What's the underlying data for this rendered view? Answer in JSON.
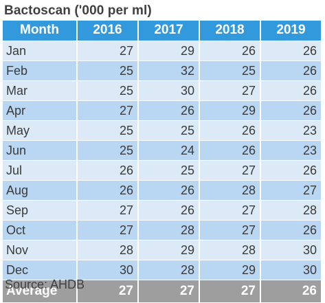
{
  "chart_data": {
    "type": "table",
    "title": "Bactoscan ('000 per ml)",
    "columns": [
      "Month",
      "2016",
      "2017",
      "2018",
      "2019"
    ],
    "rows": [
      [
        "Jan",
        "27",
        "29",
        "26",
        "26"
      ],
      [
        "Feb",
        "25",
        "32",
        "25",
        "26"
      ],
      [
        "Mar",
        "25",
        "30",
        "27",
        "26"
      ],
      [
        "Apr",
        "27",
        "26",
        "29",
        "26"
      ],
      [
        "May",
        "25",
        "25",
        "26",
        "23"
      ],
      [
        "Jun",
        "25",
        "24",
        "26",
        "23"
      ],
      [
        "Jul",
        "26",
        "25",
        "27",
        "26"
      ],
      [
        "Aug",
        "26",
        "26",
        "28",
        "27"
      ],
      [
        "Sep",
        "27",
        "26",
        "27",
        "28"
      ],
      [
        "Oct",
        "27",
        "28",
        "27",
        "26"
      ],
      [
        "Nov",
        "28",
        "29",
        "28",
        "30"
      ],
      [
        "Dec",
        "30",
        "28",
        "29",
        "30"
      ]
    ],
    "footer": [
      "Average",
      "27",
      "27",
      "27",
      "26"
    ],
    "source": "Source: AHDB"
  },
  "colors": {
    "header": "#3399dd",
    "row_light": "#dceaf8",
    "row_dark": "#b9d6f2",
    "footer": "#9e9e9e"
  }
}
